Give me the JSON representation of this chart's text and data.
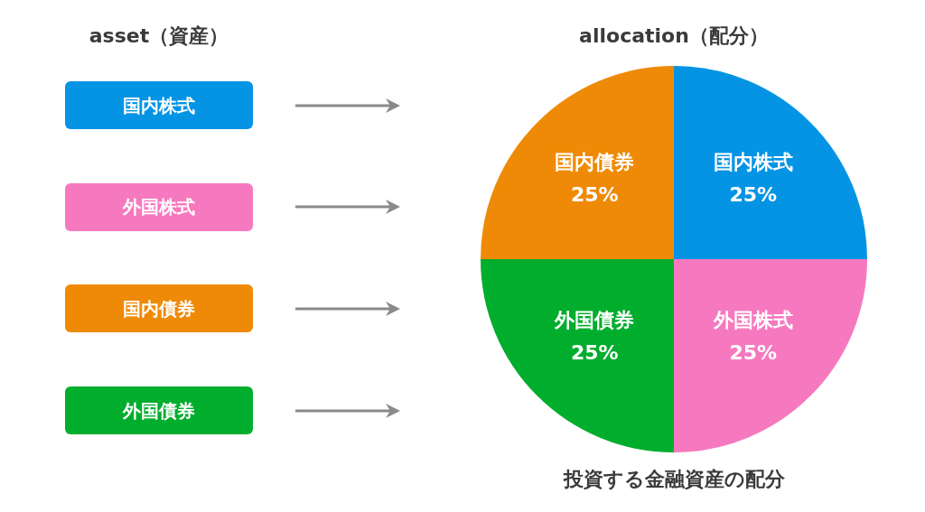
{
  "chart_data": [
    {
      "type": "other",
      "title": "asset（資産）",
      "annotations": [
        "国内株式",
        "外国株式",
        "国内債券",
        "外国債券"
      ],
      "colors": [
        "#0594e4",
        "#f679bf",
        "#ef8a06",
        "#00ad2d"
      ]
    },
    {
      "type": "pie",
      "title": "allocation（配分）",
      "categories": [
        "国内株式",
        "外国株式",
        "外国債券",
        "国内債券"
      ],
      "values": [
        25,
        25,
        25,
        25
      ],
      "colors": [
        "#0594e4",
        "#f679bf",
        "#00ad2d",
        "#ef8a06"
      ],
      "value_labels": [
        "25%",
        "25%",
        "25%",
        "25%"
      ],
      "annotations": [
        "投資する金融資産の配分"
      ]
    }
  ]
}
